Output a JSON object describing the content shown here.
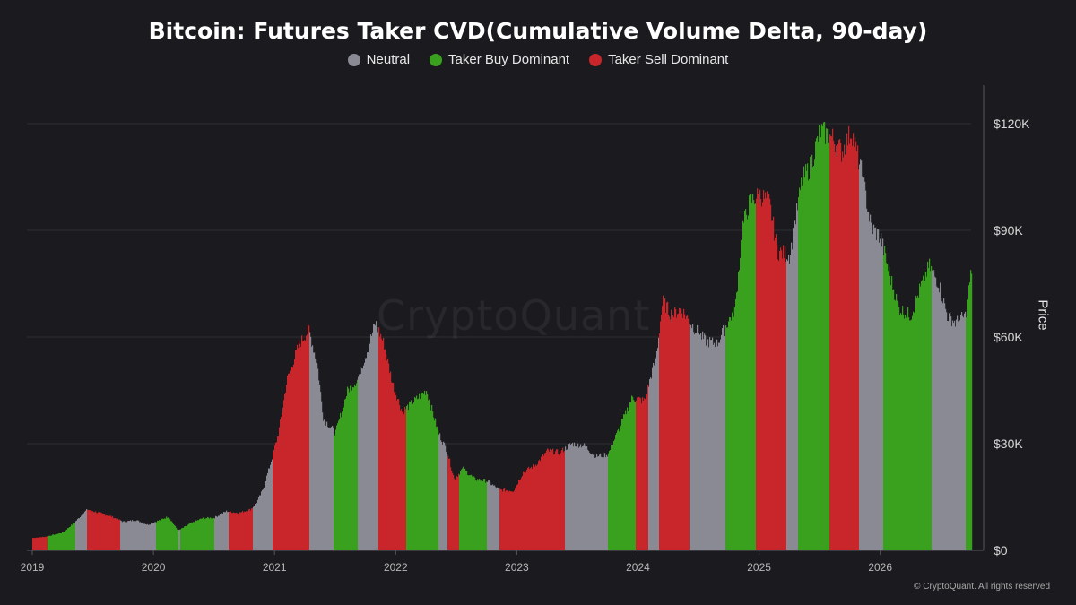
{
  "title": "Bitcoin: Futures Taker CVD(Cumulative Volume Delta, 90-day)",
  "legend": [
    {
      "label": "Neutral",
      "color": "#8a8a94"
    },
    {
      "label": "Taker Buy Dominant",
      "color": "#3aa11e"
    },
    {
      "label": "Taker Sell Dominant",
      "color": "#c8262a"
    }
  ],
  "watermark": "CryptoQuant",
  "credit": "© CryptoQuant. All rights reserved",
  "chart_data": {
    "type": "bar",
    "ylabel": "Price",
    "ylim": [
      0,
      130000
    ],
    "xlim": [
      2019.0,
      2026.75
    ],
    "y_ticks": [
      {
        "value": 0,
        "label": "$0"
      },
      {
        "value": 30000,
        "label": "$30K"
      },
      {
        "value": 60000,
        "label": "$60K"
      },
      {
        "value": 90000,
        "label": "$90K"
      },
      {
        "value": 120000,
        "label": "$120K"
      }
    ],
    "x_ticks": [
      {
        "value": 2019,
        "label": "2019"
      },
      {
        "value": 2020,
        "label": "2020"
      },
      {
        "value": 2021,
        "label": "2021"
      },
      {
        "value": 2022,
        "label": "2022"
      },
      {
        "value": 2023,
        "label": "2023"
      },
      {
        "value": 2024,
        "label": "2024"
      },
      {
        "value": 2025,
        "label": "2025"
      },
      {
        "value": 2026,
        "label": "2026"
      }
    ],
    "grid": true,
    "legend_position": "top-center",
    "price_series": [
      [
        2019.0,
        3500
      ],
      [
        2019.1,
        3800
      ],
      [
        2019.25,
        5000
      ],
      [
        2019.35,
        8000
      ],
      [
        2019.45,
        11500
      ],
      [
        2019.55,
        10500
      ],
      [
        2019.65,
        9500
      ],
      [
        2019.75,
        8000
      ],
      [
        2019.85,
        8500
      ],
      [
        2019.95,
        7200
      ],
      [
        2020.05,
        8500
      ],
      [
        2020.12,
        9500
      ],
      [
        2020.2,
        5500
      ],
      [
        2020.3,
        7500
      ],
      [
        2020.4,
        9000
      ],
      [
        2020.5,
        9200
      ],
      [
        2020.6,
        11000
      ],
      [
        2020.7,
        10500
      ],
      [
        2020.8,
        11500
      ],
      [
        2020.85,
        13500
      ],
      [
        2020.9,
        17000
      ],
      [
        2020.96,
        24000
      ],
      [
        2021.03,
        33000
      ],
      [
        2021.1,
        48000
      ],
      [
        2021.2,
        58000
      ],
      [
        2021.28,
        62000
      ],
      [
        2021.35,
        52000
      ],
      [
        2021.4,
        37000
      ],
      [
        2021.5,
        33000
      ],
      [
        2021.6,
        45000
      ],
      [
        2021.68,
        48000
      ],
      [
        2021.75,
        55000
      ],
      [
        2021.83,
        64000
      ],
      [
        2021.9,
        58000
      ],
      [
        2021.97,
        47000
      ],
      [
        2022.05,
        39000
      ],
      [
        2022.15,
        42000
      ],
      [
        2022.25,
        45000
      ],
      [
        2022.35,
        33000
      ],
      [
        2022.42,
        28000
      ],
      [
        2022.48,
        20000
      ],
      [
        2022.55,
        23000
      ],
      [
        2022.65,
        20000
      ],
      [
        2022.75,
        19500
      ],
      [
        2022.85,
        17000
      ],
      [
        2022.97,
        16800
      ],
      [
        2023.05,
        22000
      ],
      [
        2023.15,
        24000
      ],
      [
        2023.25,
        28000
      ],
      [
        2023.35,
        27500
      ],
      [
        2023.45,
        30000
      ],
      [
        2023.55,
        29500
      ],
      [
        2023.65,
        26500
      ],
      [
        2023.75,
        27000
      ],
      [
        2023.85,
        35000
      ],
      [
        2023.95,
        43000
      ],
      [
        2024.05,
        42000
      ],
      [
        2024.15,
        55000
      ],
      [
        2024.2,
        70000
      ],
      [
        2024.28,
        66000
      ],
      [
        2024.35,
        68000
      ],
      [
        2024.45,
        63000
      ],
      [
        2024.55,
        59000
      ],
      [
        2024.65,
        58000
      ],
      [
        2024.72,
        63000
      ],
      [
        2024.8,
        68000
      ],
      [
        2024.86,
        91000
      ],
      [
        2024.92,
        98000
      ],
      [
        2025.0,
        100000
      ],
      [
        2025.08,
        98000
      ],
      [
        2025.15,
        84000
      ],
      [
        2025.25,
        83000
      ],
      [
        2025.35,
        104000
      ],
      [
        2025.42,
        108000
      ],
      [
        2025.5,
        118000
      ],
      [
        2025.6,
        116000
      ],
      [
        2025.68,
        112000
      ],
      [
        2025.76,
        118000
      ],
      [
        2025.85,
        105000
      ],
      [
        2025.92,
        91000
      ],
      [
        2026.0,
        88000
      ],
      [
        2026.07,
        78000
      ],
      [
        2026.15,
        68000
      ],
      [
        2026.25,
        66000
      ],
      [
        2026.33,
        74000
      ],
      [
        2026.4,
        80000
      ],
      [
        2026.48,
        75000
      ],
      [
        2026.55,
        66000
      ],
      [
        2026.62,
        64000
      ],
      [
        2026.7,
        66000
      ],
      [
        2026.75,
        79000
      ]
    ],
    "regimes": [
      {
        "start": 2019.0,
        "end": 2019.12,
        "state": "Taker Sell Dominant"
      },
      {
        "start": 2019.12,
        "end": 2019.35,
        "state": "Taker Buy Dominant"
      },
      {
        "start": 2019.35,
        "end": 2019.45,
        "state": "Neutral"
      },
      {
        "start": 2019.45,
        "end": 2019.72,
        "state": "Taker Sell Dominant"
      },
      {
        "start": 2019.72,
        "end": 2020.02,
        "state": "Neutral"
      },
      {
        "start": 2020.02,
        "end": 2020.2,
        "state": "Taker Buy Dominant"
      },
      {
        "start": 2020.2,
        "end": 2020.22,
        "state": "Neutral"
      },
      {
        "start": 2020.22,
        "end": 2020.5,
        "state": "Taker Buy Dominant"
      },
      {
        "start": 2020.5,
        "end": 2020.62,
        "state": "Neutral"
      },
      {
        "start": 2020.62,
        "end": 2020.82,
        "state": "Taker Sell Dominant"
      },
      {
        "start": 2020.82,
        "end": 2020.98,
        "state": "Neutral"
      },
      {
        "start": 2020.98,
        "end": 2021.28,
        "state": "Taker Sell Dominant"
      },
      {
        "start": 2021.28,
        "end": 2021.48,
        "state": "Neutral"
      },
      {
        "start": 2021.48,
        "end": 2021.68,
        "state": "Taker Buy Dominant"
      },
      {
        "start": 2021.68,
        "end": 2021.85,
        "state": "Neutral"
      },
      {
        "start": 2021.85,
        "end": 2022.08,
        "state": "Taker Sell Dominant"
      },
      {
        "start": 2022.08,
        "end": 2022.35,
        "state": "Taker Buy Dominant"
      },
      {
        "start": 2022.35,
        "end": 2022.42,
        "state": "Neutral"
      },
      {
        "start": 2022.42,
        "end": 2022.52,
        "state": "Taker Sell Dominant"
      },
      {
        "start": 2022.52,
        "end": 2022.75,
        "state": "Taker Buy Dominant"
      },
      {
        "start": 2022.75,
        "end": 2022.85,
        "state": "Neutral"
      },
      {
        "start": 2022.85,
        "end": 2023.39,
        "state": "Taker Sell Dominant"
      },
      {
        "start": 2023.39,
        "end": 2023.75,
        "state": "Neutral"
      },
      {
        "start": 2023.75,
        "end": 2023.98,
        "state": "Taker Buy Dominant"
      },
      {
        "start": 2023.98,
        "end": 2024.08,
        "state": "Taker Sell Dominant"
      },
      {
        "start": 2024.08,
        "end": 2024.17,
        "state": "Neutral"
      },
      {
        "start": 2024.17,
        "end": 2024.42,
        "state": "Taker Sell Dominant"
      },
      {
        "start": 2024.42,
        "end": 2024.72,
        "state": "Neutral"
      },
      {
        "start": 2024.72,
        "end": 2024.97,
        "state": "Taker Buy Dominant"
      },
      {
        "start": 2024.97,
        "end": 2025.22,
        "state": "Taker Sell Dominant"
      },
      {
        "start": 2025.22,
        "end": 2025.32,
        "state": "Neutral"
      },
      {
        "start": 2025.32,
        "end": 2025.58,
        "state": "Taker Buy Dominant"
      },
      {
        "start": 2025.58,
        "end": 2025.82,
        "state": "Taker Sell Dominant"
      },
      {
        "start": 2025.82,
        "end": 2026.02,
        "state": "Neutral"
      },
      {
        "start": 2026.02,
        "end": 2026.42,
        "state": "Taker Buy Dominant"
      },
      {
        "start": 2026.42,
        "end": 2026.7,
        "state": "Neutral"
      },
      {
        "start": 2026.7,
        "end": 2026.75,
        "state": "Taker Buy Dominant"
      }
    ]
  }
}
